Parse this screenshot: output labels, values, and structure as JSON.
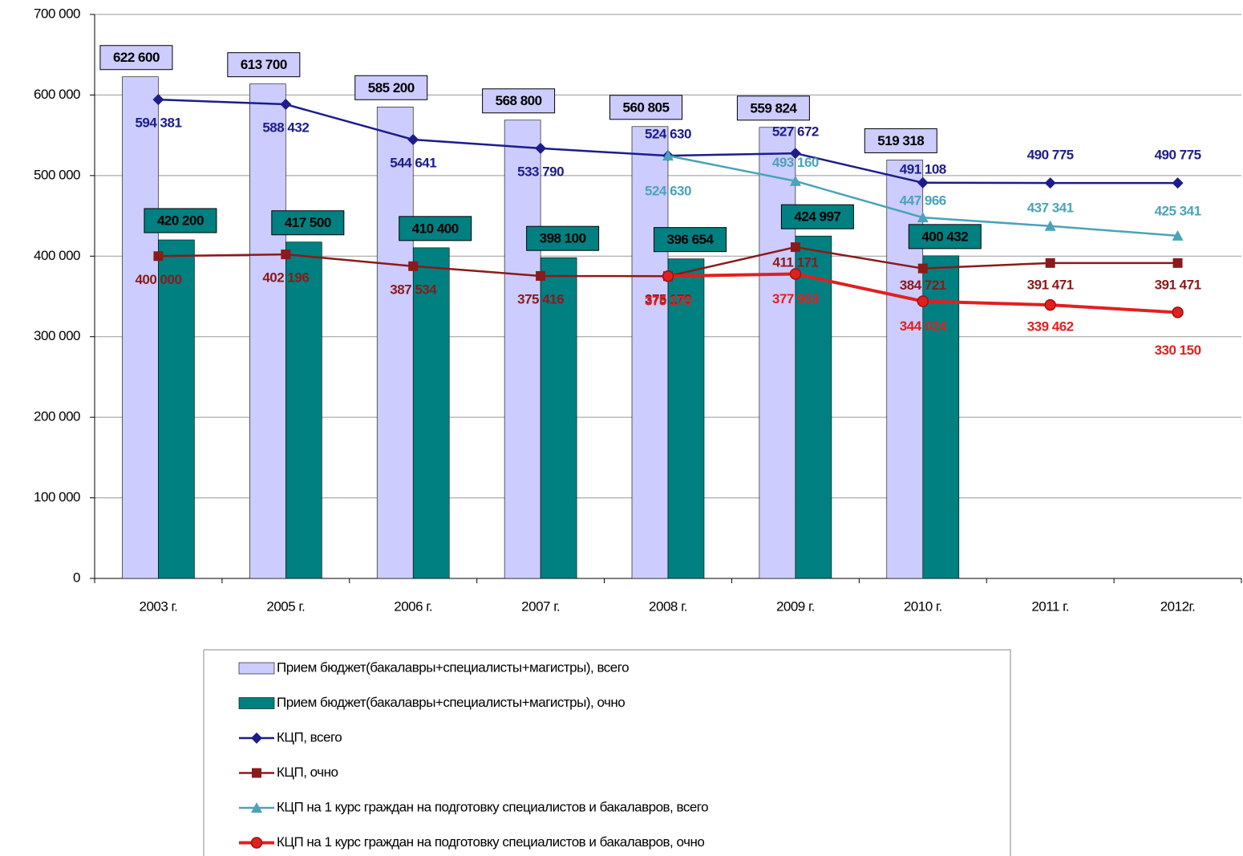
{
  "chart_data": {
    "type": "bar",
    "categories": [
      "2003 г.",
      "2005 г.",
      "2006 г.",
      "2007 г.",
      "2008 г.",
      "2009 г.",
      "2010 г.",
      "2011 г.",
      "2012г."
    ],
    "ylim": [
      0,
      700000
    ],
    "yticks": [
      0,
      {
        "value": 100000,
        "label": "100 000"
      },
      {
        "value": 200000,
        "label": "200 000"
      },
      {
        "value": 300000,
        "label": "300 000"
      },
      {
        "value": 400000,
        "label": "400 000"
      },
      {
        "value": 500000,
        "label": "500 000"
      },
      {
        "value": 600000,
        "label": "600 000"
      },
      {
        "value": 700000,
        "label": "700 000"
      }
    ],
    "grid": true,
    "legend": "bottom",
    "series": [
      {
        "name": "Прием бюджет(бакалавры+специалисты+магистры), всего",
        "type": "bar",
        "color": "#ccccff",
        "values": [
          622600,
          613700,
          585200,
          568800,
          560805,
          559824,
          519318,
          null,
          null
        ],
        "value_labels": [
          "622 600",
          "613 700",
          "585 200",
          "568 800",
          "560 805",
          "559 824",
          "519 318",
          null,
          null
        ]
      },
      {
        "name": "Прием бюджет(бакалавры+специалисты+магистры), очно",
        "type": "bar",
        "color": "#008080",
        "values": [
          420200,
          417500,
          410400,
          398100,
          396654,
          424997,
          400432,
          null,
          null
        ],
        "value_labels": [
          "420 200",
          "417 500",
          "410 400",
          "398 100",
          "396 654",
          "424 997",
          "400 432",
          null,
          null
        ]
      },
      {
        "name": "КЦП, всего",
        "type": "line",
        "marker": "diamond",
        "color": "#1c1c8c",
        "values": [
          594381,
          588432,
          544641,
          533790,
          524630,
          527672,
          491108,
          490775,
          490775
        ],
        "value_labels": [
          "594 381",
          "588 432",
          "544 641",
          "533 790",
          "524 630",
          "527 672",
          "491 108",
          "490 775",
          "490 775"
        ]
      },
      {
        "name": "КЦП, очно",
        "type": "line",
        "marker": "square",
        "color": "#8b1a1a",
        "values": [
          400000,
          402196,
          387534,
          375416,
          375170,
          411171,
          384721,
          391471,
          391471
        ],
        "value_labels": [
          "400 000",
          "402 196",
          "387 534",
          "375 416",
          "375 170",
          "411 171",
          "384 721",
          "391 471",
          "391 471"
        ]
      },
      {
        "name": "КЦП на 1  курс граждан на подготовку специалистов и бакалавров, всего",
        "type": "line",
        "marker": "triangle",
        "color": "#4aa3b8",
        "values": [
          null,
          null,
          null,
          null,
          524630,
          493160,
          447966,
          437341,
          425341
        ],
        "value_labels": [
          null,
          null,
          null,
          null,
          "524 630",
          "493 160",
          "447 966",
          "437 341",
          "425 341"
        ]
      },
      {
        "name": "КЦП на 1  курс граждан на подготовку специалистов и бакалавров, очно",
        "type": "line",
        "marker": "circle",
        "color": "#e02020",
        "values": [
          null,
          null,
          null,
          null,
          375170,
          377903,
          344024,
          339462,
          330150
        ],
        "value_labels": [
          null,
          null,
          null,
          null,
          "375 170",
          "377 903",
          "344 024",
          "339 462",
          "330 150"
        ]
      }
    ]
  }
}
